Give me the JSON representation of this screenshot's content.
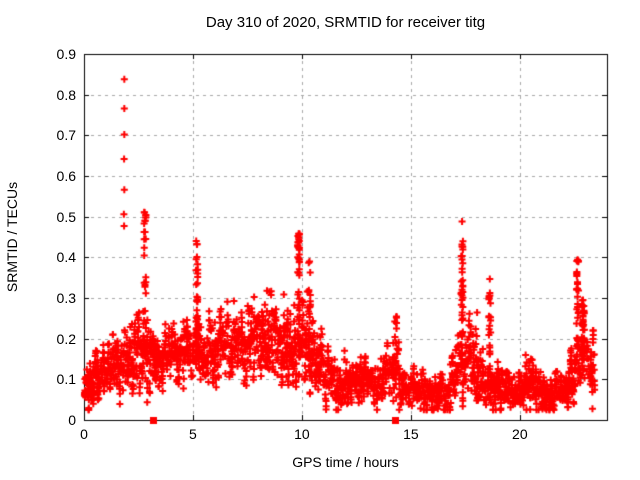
{
  "chart_data": {
    "type": "scatter",
    "title": "Day 310 of 2020, SRMTID for receiver titg",
    "xlabel": "GPS time / hours",
    "ylabel": "SRMTID / TECUs",
    "xlim": [
      0,
      24
    ],
    "ylim": [
      0,
      0.9
    ],
    "grid": true,
    "legend": "none",
    "xticks": [
      {
        "v": 0,
        "label": "0"
      },
      {
        "v": 5,
        "label": "5"
      },
      {
        "v": 10,
        "label": "10"
      },
      {
        "v": 15,
        "label": "15"
      },
      {
        "v": 20,
        "label": "20"
      }
    ],
    "yticks": [
      {
        "v": 0.0,
        "label": "0"
      },
      {
        "v": 0.1,
        "label": "0.1"
      },
      {
        "v": 0.2,
        "label": "0.2"
      },
      {
        "v": 0.3,
        "label": "0.3"
      },
      {
        "v": 0.4,
        "label": "0.4"
      },
      {
        "v": 0.5,
        "label": "0.5"
      },
      {
        "v": 0.6,
        "label": "0.6"
      },
      {
        "v": 0.7,
        "label": "0.7"
      },
      {
        "v": 0.8,
        "label": "0.8"
      },
      {
        "v": 0.9,
        "label": "0.9"
      }
    ],
    "colors": {
      "marker": "#ff0000",
      "grid": "#a8a8a8",
      "border": "#000000",
      "background": "#ffffff",
      "text": "#000000"
    },
    "series": [
      {
        "name": "srmtid-points",
        "marker": "plus",
        "color": "#ff0000",
        "seed": 20201106,
        "envelope_format": [
          "t_start",
          "t_end",
          "n_points",
          "center",
          "spread",
          "max"
        ],
        "envelope": [
          [
            0.0,
            0.3,
            30,
            0.09,
            0.035,
            0.16
          ],
          [
            0.3,
            0.8,
            55,
            0.1,
            0.035,
            0.17
          ],
          [
            0.8,
            1.3,
            55,
            0.12,
            0.04,
            0.19
          ],
          [
            1.3,
            1.8,
            55,
            0.13,
            0.04,
            0.21
          ],
          [
            1.8,
            2.1,
            35,
            0.14,
            0.045,
            0.24
          ],
          [
            2.1,
            2.5,
            45,
            0.15,
            0.05,
            0.27
          ],
          [
            2.5,
            2.9,
            40,
            0.16,
            0.05,
            0.3
          ],
          [
            2.9,
            3.3,
            45,
            0.15,
            0.05,
            0.28
          ],
          [
            3.3,
            4.0,
            75,
            0.15,
            0.04,
            0.24
          ],
          [
            4.0,
            4.7,
            75,
            0.16,
            0.045,
            0.26
          ],
          [
            4.7,
            5.05,
            40,
            0.17,
            0.045,
            0.27
          ],
          [
            5.05,
            5.35,
            30,
            0.17,
            0.05,
            0.3
          ],
          [
            5.35,
            6.0,
            70,
            0.17,
            0.05,
            0.28
          ],
          [
            6.0,
            6.8,
            85,
            0.18,
            0.05,
            0.31
          ],
          [
            6.8,
            7.6,
            90,
            0.18,
            0.055,
            0.33
          ],
          [
            7.6,
            8.6,
            110,
            0.19,
            0.055,
            0.35
          ],
          [
            8.6,
            9.4,
            90,
            0.18,
            0.055,
            0.38
          ],
          [
            9.4,
            9.7,
            35,
            0.17,
            0.05,
            0.3
          ],
          [
            9.7,
            10.05,
            30,
            0.18,
            0.05,
            0.32
          ],
          [
            10.05,
            10.5,
            50,
            0.16,
            0.05,
            0.33
          ],
          [
            10.5,
            11.0,
            55,
            0.14,
            0.045,
            0.26
          ],
          [
            11.0,
            11.5,
            50,
            0.11,
            0.04,
            0.21
          ],
          [
            11.5,
            12.0,
            50,
            0.09,
            0.035,
            0.17
          ],
          [
            12.0,
            12.6,
            60,
            0.09,
            0.03,
            0.16
          ],
          [
            12.6,
            13.3,
            70,
            0.1,
            0.035,
            0.17
          ],
          [
            13.3,
            13.8,
            50,
            0.1,
            0.035,
            0.18
          ],
          [
            13.8,
            14.5,
            70,
            0.12,
            0.045,
            0.22
          ],
          [
            14.5,
            15.2,
            65,
            0.08,
            0.03,
            0.15
          ],
          [
            15.2,
            16.0,
            75,
            0.07,
            0.03,
            0.13
          ],
          [
            16.0,
            16.8,
            75,
            0.07,
            0.03,
            0.13
          ],
          [
            16.8,
            17.15,
            35,
            0.1,
            0.04,
            0.18
          ],
          [
            17.15,
            17.55,
            30,
            0.13,
            0.05,
            0.25
          ],
          [
            17.55,
            18.1,
            55,
            0.12,
            0.05,
            0.27
          ],
          [
            18.1,
            18.5,
            40,
            0.1,
            0.04,
            0.19
          ],
          [
            18.5,
            18.8,
            25,
            0.1,
            0.04,
            0.2
          ],
          [
            18.8,
            19.3,
            50,
            0.09,
            0.035,
            0.17
          ],
          [
            19.3,
            20.2,
            85,
            0.07,
            0.03,
            0.14
          ],
          [
            20.2,
            20.8,
            60,
            0.08,
            0.035,
            0.16
          ],
          [
            20.8,
            21.6,
            80,
            0.06,
            0.03,
            0.13
          ],
          [
            21.6,
            22.3,
            70,
            0.07,
            0.03,
            0.14
          ],
          [
            22.3,
            22.55,
            25,
            0.1,
            0.04,
            0.19
          ],
          [
            22.55,
            23.2,
            40,
            0.13,
            0.05,
            0.28
          ],
          [
            23.2,
            23.45,
            25,
            0.13,
            0.045,
            0.22
          ]
        ],
        "spike_format": [
          "t_center",
          "v_low",
          "v_high",
          "n_points"
        ],
        "spikes": [
          [
            2.8,
            0.2,
            0.44,
            12
          ],
          [
            2.8,
            0.44,
            0.515,
            9
          ],
          [
            5.18,
            0.15,
            0.445,
            35
          ],
          [
            9.85,
            0.15,
            0.46,
            40
          ],
          [
            10.35,
            0.18,
            0.39,
            12
          ],
          [
            14.3,
            0.12,
            0.26,
            14
          ],
          [
            17.35,
            0.12,
            0.44,
            45
          ],
          [
            18.62,
            0.1,
            0.35,
            25
          ],
          [
            22.65,
            0.15,
            0.395,
            30
          ],
          [
            22.9,
            0.12,
            0.3,
            40
          ]
        ],
        "outliers": [
          [
            1.85,
            0.838
          ],
          [
            1.85,
            0.766
          ],
          [
            1.85,
            0.702
          ],
          [
            1.84,
            0.642
          ],
          [
            1.85,
            0.566
          ],
          [
            1.83,
            0.506
          ],
          [
            1.84,
            0.477
          ],
          [
            2.78,
            0.51
          ],
          [
            2.81,
            0.49
          ],
          [
            2.8,
            0.462
          ],
          [
            5.15,
            0.44
          ],
          [
            5.19,
            0.432
          ],
          [
            9.85,
            0.458
          ],
          [
            9.88,
            0.44
          ],
          [
            10.35,
            0.39
          ],
          [
            17.35,
            0.488
          ],
          [
            22.65,
            0.392
          ]
        ]
      },
      {
        "name": "flag-squares",
        "marker": "filled-square",
        "color": "#ff0000",
        "points": [
          [
            3.15,
            0.0
          ],
          [
            14.25,
            0.0
          ]
        ]
      }
    ]
  }
}
